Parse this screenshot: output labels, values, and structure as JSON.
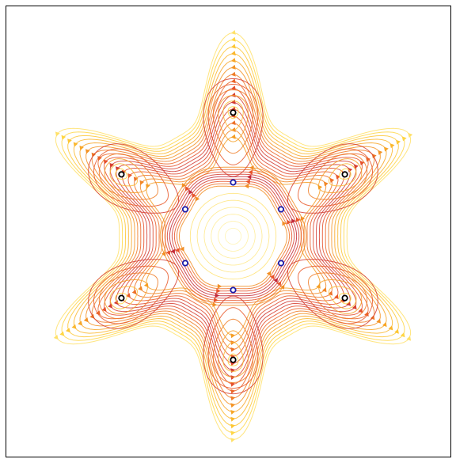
{
  "chart_data": {
    "type": "streamplot",
    "title": "",
    "xlabel": "",
    "ylabel": "",
    "axes_visible": false,
    "grid": false,
    "legend": "none",
    "xlim": [
      -1.0,
      1.0
    ],
    "ylim": [
      -1.0,
      1.0
    ],
    "colormap": [
      "#fff5b0",
      "#ffd33a",
      "#f59d24",
      "#e8532b",
      "#b81d3a"
    ],
    "series": [
      {
        "marker_color": "#000000",
        "points": [
          {
            "x": 0.0,
            "y": 0.62
          },
          {
            "x": 0.56,
            "y": 0.31
          },
          {
            "x": 0.56,
            "y": -0.31
          },
          {
            "x": 0.0,
            "y": -0.62
          },
          {
            "x": -0.56,
            "y": -0.31
          },
          {
            "x": -0.56,
            "y": 0.31
          }
        ]
      },
      {
        "marker_color": "#1a1aaa",
        "points": [
          {
            "x": 0.0,
            "y": 0.27
          },
          {
            "x": 0.24,
            "y": 0.135
          },
          {
            "x": 0.24,
            "y": -0.135
          },
          {
            "x": 0.0,
            "y": -0.27
          },
          {
            "x": -0.24,
            "y": -0.135
          },
          {
            "x": -0.24,
            "y": 0.135
          }
        ]
      }
    ],
    "flow_field": {
      "lobes": 6,
      "core_radius": 0.29,
      "lobe_center_radius": 0.62,
      "lobe_outer_radius": 0.86,
      "circulation": "counter-clockwise"
    }
  }
}
